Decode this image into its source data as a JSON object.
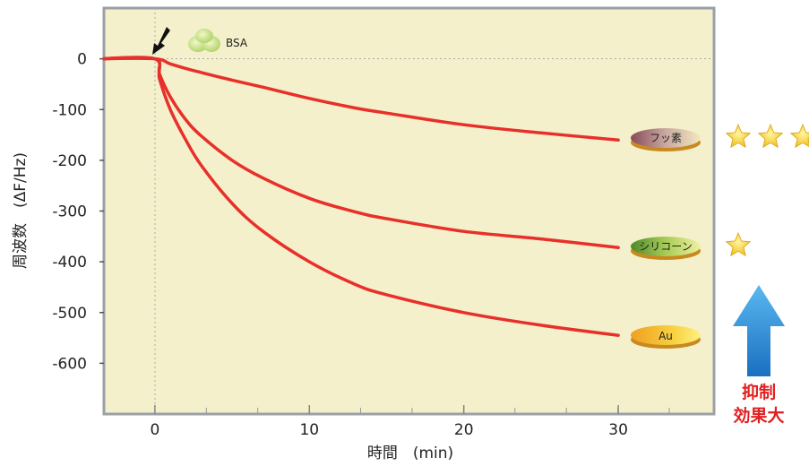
{
  "chart_data": {
    "type": "line",
    "xlabel": "時間　(min)",
    "ylabel": "周波数　(ΔF/Hz)",
    "xlim": [
      -3.3,
      36.2
    ],
    "ylim": [
      -700,
      100
    ],
    "x_ticks": [
      0,
      10,
      20,
      30
    ],
    "y_ticks": [
      0,
      -100,
      -200,
      -300,
      -400,
      -500,
      -600
    ],
    "grid": false,
    "background_color": "#f4f0cc",
    "line_color": "#e8302a",
    "injection_marker": {
      "x": 0,
      "label": "BSA"
    },
    "series": [
      {
        "name": "フッ素",
        "rating_stars": 3,
        "x": [
          -3.3,
          0,
          1,
          2,
          3,
          5,
          7,
          10,
          13,
          15,
          20,
          25,
          30
        ],
        "y": [
          0,
          0,
          -10,
          -19,
          -27,
          -42,
          -56,
          -78,
          -97,
          -107,
          -130,
          -146,
          -160
        ]
      },
      {
        "name": "シリコーン",
        "rating_stars": 1,
        "x": [
          -3.3,
          0,
          0.3,
          1,
          2,
          3,
          5,
          7,
          10,
          13,
          15,
          20,
          25,
          30
        ],
        "y": [
          0,
          0,
          -30,
          -75,
          -120,
          -152,
          -200,
          -235,
          -275,
          -302,
          -315,
          -340,
          -355,
          -372
        ]
      },
      {
        "name": "Au",
        "rating_stars": 0,
        "x": [
          -3.3,
          0,
          0.3,
          1,
          2,
          3,
          5,
          7,
          10,
          13,
          15,
          20,
          25,
          30
        ],
        "y": [
          0,
          0,
          -40,
          -100,
          -160,
          -210,
          -285,
          -340,
          -400,
          -445,
          -465,
          -500,
          -525,
          -545
        ]
      }
    ],
    "annotation_effect": "抑制\n効果大"
  }
}
